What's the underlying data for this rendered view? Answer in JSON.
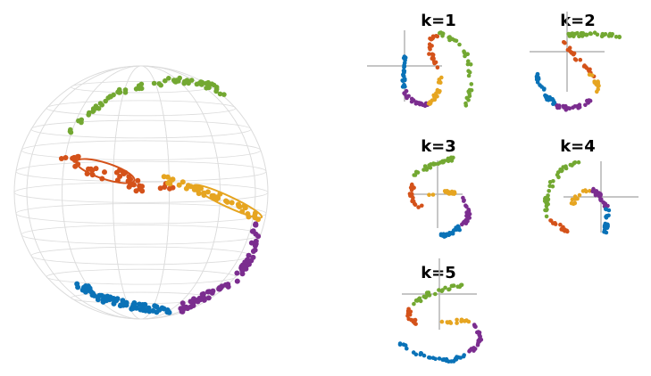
{
  "colors": {
    "blue": "#0a72b7",
    "orange": "#d4521a",
    "yellow": "#e6a521",
    "purple": "#7b2d8f",
    "green": "#73a832",
    "grid": "#dcdcdc",
    "axis": "#b4b4b4"
  },
  "panels": [
    {
      "title": "k=1"
    },
    {
      "title": "k=2"
    },
    {
      "title": "k=3"
    },
    {
      "title": "k=4"
    },
    {
      "title": "k=5"
    }
  ]
}
